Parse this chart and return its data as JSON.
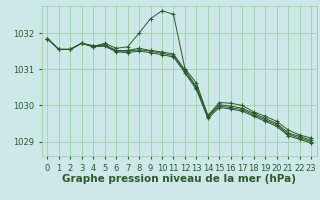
{
  "bg_color": "#cce8e8",
  "grid_color": "#99cc99",
  "line_color": "#2d5a2d",
  "marker_color": "#2d5a2d",
  "xlabel": "Graphe pression niveau de la mer (hPa)",
  "xlabel_color": "#2d5a2d",
  "ylim": [
    1028.6,
    1032.75
  ],
  "xlim": [
    -0.5,
    23.5
  ],
  "yticks": [
    1029,
    1030,
    1031,
    1032
  ],
  "xticks": [
    0,
    1,
    2,
    3,
    4,
    5,
    6,
    7,
    8,
    9,
    10,
    11,
    12,
    13,
    14,
    15,
    16,
    17,
    18,
    19,
    20,
    21,
    22,
    23
  ],
  "series": [
    [
      1031.85,
      1031.55,
      1031.55,
      1031.72,
      1031.62,
      1031.72,
      1031.58,
      1031.62,
      1032.0,
      1032.4,
      1032.62,
      1032.52,
      1031.02,
      1030.62,
      1029.72,
      1030.08,
      1030.06,
      1030.0,
      1029.82,
      1029.7,
      1029.56,
      1029.32,
      1029.18,
      1029.1
    ],
    [
      1031.85,
      1031.55,
      1031.55,
      1031.72,
      1031.65,
      1031.68,
      1031.52,
      1031.52,
      1031.58,
      1031.52,
      1031.48,
      1031.42,
      1030.98,
      1030.52,
      1029.72,
      1030.02,
      1029.98,
      1029.92,
      1029.78,
      1029.64,
      1029.5,
      1029.24,
      1029.14,
      1029.04
    ],
    [
      1031.85,
      1031.55,
      1031.55,
      1031.72,
      1031.65,
      1031.66,
      1031.5,
      1031.5,
      1031.54,
      1031.5,
      1031.44,
      1031.38,
      1030.94,
      1030.48,
      1029.68,
      1029.98,
      1029.94,
      1029.88,
      1029.74,
      1029.6,
      1029.46,
      1029.2,
      1029.1,
      1029.0
    ],
    [
      1031.85,
      1031.55,
      1031.55,
      1031.72,
      1031.62,
      1031.64,
      1031.48,
      1031.46,
      1031.5,
      1031.46,
      1031.4,
      1031.34,
      1030.9,
      1030.44,
      1029.64,
      1029.94,
      1029.9,
      1029.84,
      1029.7,
      1029.56,
      1029.42,
      1029.16,
      1029.06,
      1028.96
    ]
  ],
  "tick_fontsize": 6,
  "label_fontsize": 7.5
}
